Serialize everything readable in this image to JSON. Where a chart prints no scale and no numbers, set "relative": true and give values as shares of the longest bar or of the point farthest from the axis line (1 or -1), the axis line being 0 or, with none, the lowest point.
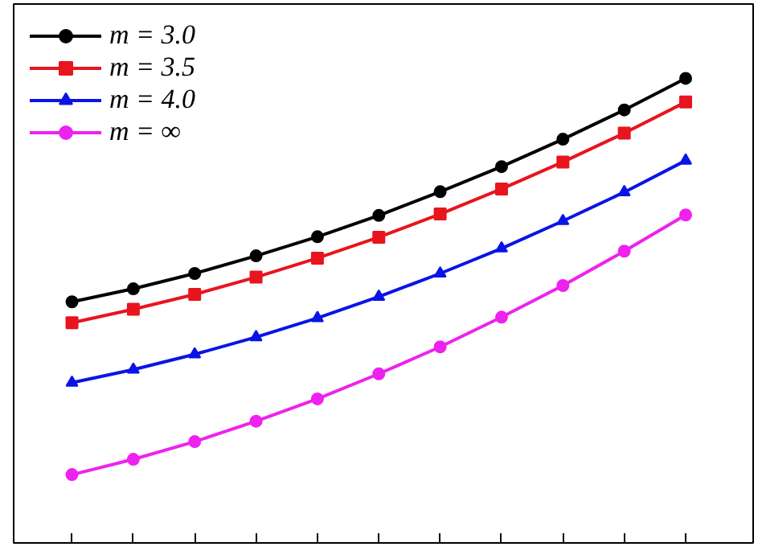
{
  "chart_data": {
    "type": "line",
    "relative": true,
    "categories": [
      null,
      null,
      null,
      null,
      null,
      null,
      null,
      null,
      null,
      null,
      null
    ],
    "series": [
      {
        "name": "m = 3.0",
        "color": "#000000",
        "marker": "circle",
        "values": [
          0.519,
          0.547,
          0.58,
          0.618,
          0.659,
          0.705,
          0.756,
          0.81,
          0.869,
          0.932,
          1
        ]
      },
      {
        "name": "m = 3.5",
        "color": "#e8141e",
        "marker": "square",
        "values": [
          0.474,
          0.503,
          0.535,
          0.572,
          0.613,
          0.658,
          0.708,
          0.762,
          0.82,
          0.882,
          0.949
        ]
      },
      {
        "name": "m = 4.0",
        "color": "#0a14e6",
        "marker": "triangle",
        "values": [
          0.345,
          0.373,
          0.406,
          0.443,
          0.484,
          0.53,
          0.58,
          0.634,
          0.693,
          0.755,
          0.823
        ]
      },
      {
        "name": "m = ∞",
        "color": "#ee22ee",
        "marker": "circle",
        "values": [
          0.147,
          0.18,
          0.218,
          0.262,
          0.31,
          0.364,
          0.422,
          0.486,
          0.554,
          0.628,
          0.706
        ]
      }
    ],
    "legend": "top left",
    "grid": false,
    "line_style": "solid"
  }
}
